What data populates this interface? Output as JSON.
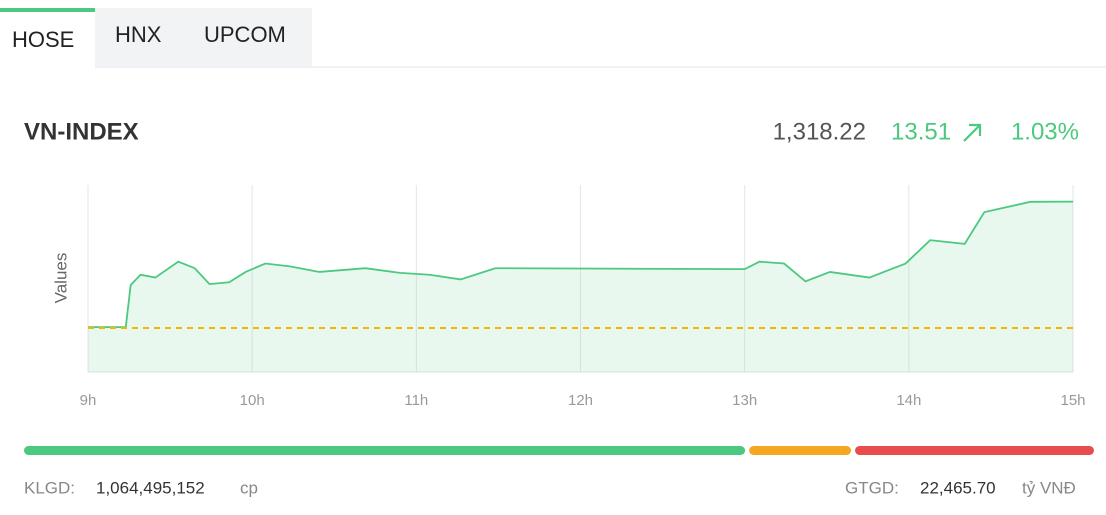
{
  "tabs": [
    "HOSE",
    "HNX",
    "UPCOM"
  ],
  "index": {
    "name": "VN-INDEX",
    "value": {
      "value": 1318.22,
      "label": "1,318.22"
    },
    "change": 13.51,
    "change_percent": {
      "value": 1.03,
      "label": "1.03%"
    }
  },
  "chart_data": {
    "type": "line",
    "y_label": "Values",
    "x": [
      9.0,
      9.23,
      9.26,
      9.32,
      9.41,
      9.55,
      9.65,
      9.74,
      9.86,
      9.96,
      10.08,
      10.23,
      10.41,
      10.69,
      10.9,
      11.08,
      11.27,
      11.48,
      13.0,
      13.09,
      13.24,
      13.37,
      13.52,
      13.76,
      13.98,
      14.13,
      14.34,
      14.46,
      14.74,
      15.0
    ],
    "series": [
      {
        "color": "#4cc97f",
        "values": [
          1304.8,
          1304.8,
          1309.3,
          1310.4,
          1310.1,
          1311.8,
          1311.1,
          1309.4,
          1309.6,
          1310.7,
          1311.6,
          1311.3,
          1310.7,
          1311.1,
          1310.6,
          1310.4,
          1309.9,
          1311.1,
          1311.0,
          1311.8,
          1311.6,
          1309.7,
          1310.7,
          1310.1,
          1311.6,
          1314.1,
          1313.7,
          1317.1,
          1318.2,
          1318.22
        ]
      }
    ],
    "xlim": [
      9,
      15
    ],
    "xticks": [
      {
        "value": 9,
        "label": "9h"
      },
      {
        "value": 10,
        "label": "10h"
      },
      {
        "value": 11,
        "label": "11h"
      },
      {
        "value": 12,
        "label": "12h"
      },
      {
        "value": 13,
        "label": "13h"
      },
      {
        "value": 14,
        "label": "14h"
      },
      {
        "value": 15,
        "label": "15h"
      }
    ],
    "ylim": [
      1300,
      1320
    ],
    "reference_line": {
      "value": 1304.71,
      "color": "#f5b800"
    },
    "grid": true
  },
  "breadth": [
    {
      "color": "#4cc97f",
      "value": 67.9
    },
    {
      "color": "#f5a623",
      "value": 9.6
    },
    {
      "color": "#e84c4c",
      "value": 22.5
    }
  ],
  "volume": {
    "label": "KLGD:",
    "value": {
      "value": 1064495152,
      "label": "1,064,495,152"
    },
    "unit": "cp"
  },
  "turnover": {
    "label": "GTGD:",
    "value": {
      "value": 22465.7,
      "label": "22,465.70"
    },
    "unit": "tỷ VNĐ"
  }
}
